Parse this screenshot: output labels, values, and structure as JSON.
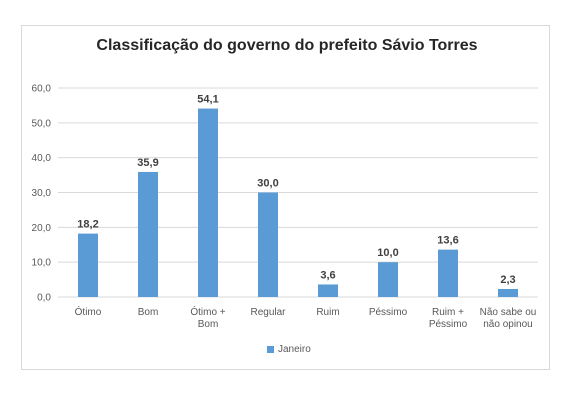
{
  "chart_data": {
    "type": "bar",
    "title": "Classificação do governo do prefeito Sávio Torres",
    "categories": [
      "Ótimo",
      "Bom",
      "Ótimo + Bom",
      "Regular",
      "Ruim",
      "Péssimo",
      "Ruim + Péssimo",
      "Não sabe ou não opinou"
    ],
    "category_lines": [
      [
        "Ótimo"
      ],
      [
        "Bom"
      ],
      [
        "Ótimo +",
        "Bom"
      ],
      [
        "Regular"
      ],
      [
        "Ruim"
      ],
      [
        "Péssimo"
      ],
      [
        "Ruim +",
        "Péssimo"
      ],
      [
        "Não sabe ou",
        "não opinou"
      ]
    ],
    "series": [
      {
        "name": "Janeiro",
        "values": [
          18.2,
          35.9,
          54.1,
          30.0,
          3.6,
          10.0,
          13.6,
          2.3
        ],
        "labels": [
          "18,2",
          "35,9",
          "54,1",
          "30,0",
          "3,6",
          "10,0",
          "13,6",
          "2,3"
        ]
      }
    ],
    "yticks": [
      "0,0",
      "10,0",
      "20,0",
      "30,0",
      "40,0",
      "50,0",
      "60,0"
    ],
    "ylim": [
      0,
      60
    ],
    "grid": true,
    "legend_position": "bottom",
    "colors": {
      "bar": "#5b9bd5",
      "grid": "#d9d9d9"
    }
  }
}
